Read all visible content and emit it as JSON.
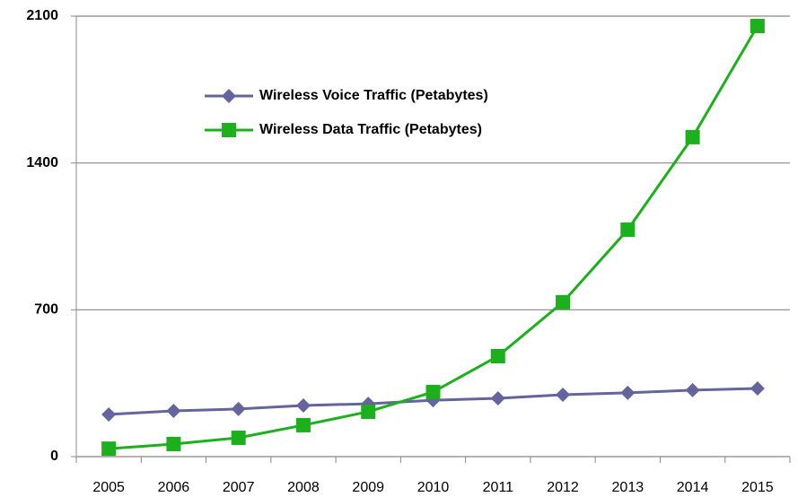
{
  "chart_data": {
    "type": "line",
    "categories": [
      "2005",
      "2006",
      "2007",
      "2008",
      "2009",
      "2010",
      "2011",
      "2012",
      "2013",
      "2014",
      "2015"
    ],
    "series": [
      {
        "name": "Wireless Voice Traffic (Petabytes)",
        "color": "#64649e",
        "values": [
          201,
          218,
          227,
          244,
          252,
          269,
          278,
          295,
          304,
          317,
          325
        ]
      },
      {
        "name": "Wireless Data Traffic (Petabytes)",
        "color": "#1cb01c",
        "values": [
          38,
          60,
          90,
          150,
          214,
          308,
          479,
          736,
          1082,
          1523,
          2053
        ]
      }
    ],
    "ylim": [
      0,
      2100
    ],
    "yticks": [
      0,
      700,
      1400,
      2100
    ],
    "grid": true,
    "legend": "top-left"
  }
}
